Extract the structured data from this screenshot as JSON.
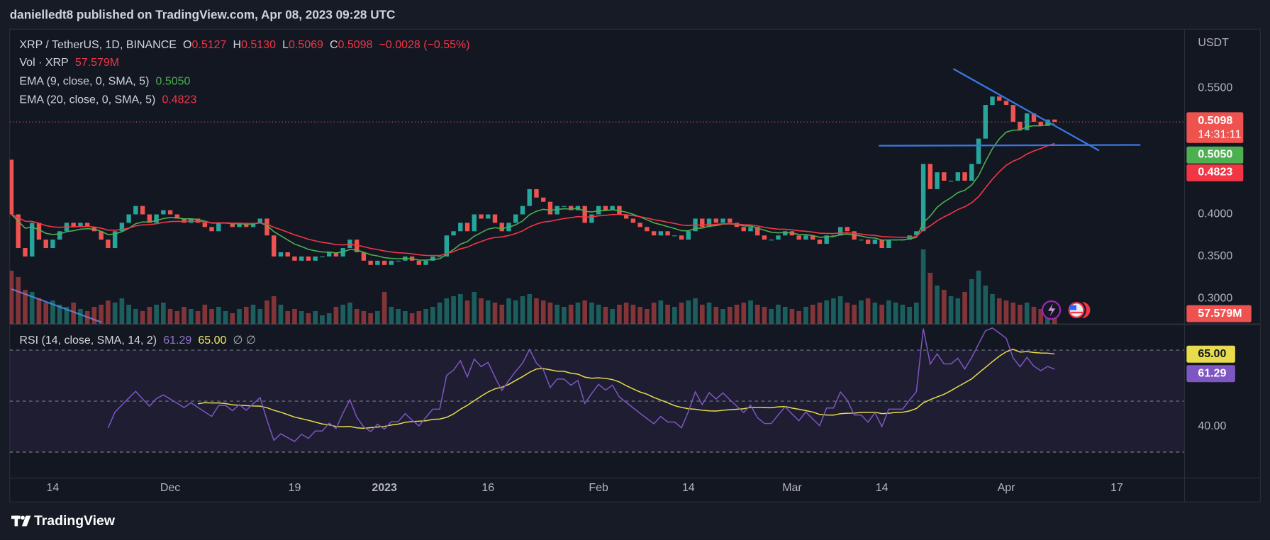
{
  "chart_data": {
    "type": "candlestick",
    "publisher": "danielledt8 published on TradingView.com, Apr 08, 2023 09:28 UTC",
    "symbol": "XRP / TetherUS, 1D, BINANCE",
    "ohlc": [
      {
        "key": "O",
        "value": "0.5127"
      },
      {
        "key": "H",
        "value": "0.5130"
      },
      {
        "key": "L",
        "value": "0.5069"
      },
      {
        "key": "C",
        "value": "0.5098"
      }
    ],
    "change": "−0.0028 (−0.55%)",
    "currency": "USDT",
    "categories": [
      null,
      null,
      null,
      null,
      null,
      null,
      "14",
      null,
      null,
      null,
      null,
      null,
      null,
      null,
      null,
      null,
      null,
      null,
      null,
      null,
      null,
      null,
      null,
      "Dec",
      null,
      null,
      null,
      null,
      null,
      null,
      null,
      null,
      null,
      null,
      null,
      null,
      null,
      null,
      null,
      null,
      null,
      "19",
      null,
      null,
      null,
      null,
      null,
      null,
      null,
      null,
      null,
      null,
      null,
      null,
      "2023",
      null,
      null,
      null,
      null,
      null,
      null,
      null,
      null,
      null,
      null,
      null,
      null,
      null,
      null,
      "16",
      null,
      null,
      null,
      null,
      null,
      null,
      null,
      null,
      null,
      null,
      null,
      null,
      null,
      null,
      null,
      "Feb",
      null,
      null,
      null,
      null,
      null,
      null,
      null,
      null,
      null,
      null,
      null,
      null,
      "14",
      null,
      null,
      null,
      null,
      null,
      null,
      null,
      null,
      null,
      null,
      null,
      null,
      null,
      null,
      "Mar",
      null,
      null,
      null,
      null,
      null,
      null,
      null,
      null,
      null,
      null,
      null,
      null,
      "14",
      null,
      null,
      null,
      null,
      null,
      null,
      null,
      null,
      null,
      null,
      null,
      null,
      null,
      null,
      null,
      null,
      null,
      "Apr",
      null,
      null,
      null,
      null,
      null,
      null,
      null,
      null,
      null,
      null,
      null,
      null,
      null,
      null,
      null,
      "17"
    ],
    "open": [
      0.465,
      0.4,
      0.36,
      0.35,
      0.39,
      0.37,
      0.36,
      0.37,
      0.38,
      0.39,
      0.385,
      0.39,
      0.385,
      0.38,
      0.37,
      0.36,
      0.38,
      0.39,
      0.4,
      0.41,
      0.4,
      0.39,
      0.4,
      0.405,
      0.4,
      0.395,
      0.39,
      0.395,
      0.39,
      0.385,
      0.38,
      0.39,
      0.39,
      0.385,
      0.39,
      0.385,
      0.39,
      0.395,
      0.375,
      0.35,
      0.355,
      0.35,
      0.345,
      0.35,
      0.345,
      0.35,
      0.35,
      0.355,
      0.35,
      0.36,
      0.37,
      0.355,
      0.345,
      0.34,
      0.345,
      0.34,
      0.345,
      0.345,
      0.35,
      0.345,
      0.34,
      0.345,
      0.35,
      0.35,
      0.375,
      0.38,
      0.39,
      0.38,
      0.4,
      0.395,
      0.4,
      0.39,
      0.38,
      0.39,
      0.4,
      0.41,
      0.43,
      0.42,
      0.415,
      0.4,
      0.41,
      0.41,
      0.405,
      0.41,
      0.39,
      0.4,
      0.41,
      0.405,
      0.41,
      0.4,
      0.395,
      0.39,
      0.385,
      0.38,
      0.375,
      0.38,
      0.375,
      0.375,
      0.37,
      0.38,
      0.395,
      0.385,
      0.395,
      0.39,
      0.395,
      0.39,
      0.385,
      0.38,
      0.385,
      0.375,
      0.37,
      0.37,
      0.375,
      0.38,
      0.375,
      0.37,
      0.375,
      0.37,
      0.365,
      0.375,
      0.375,
      0.385,
      0.38,
      0.37,
      0.37,
      0.365,
      0.37,
      0.36,
      0.37,
      0.37,
      0.37,
      0.375,
      0.38,
      0.46,
      0.43,
      0.45,
      0.44,
      0.44,
      0.45,
      0.44,
      0.46,
      0.49,
      0.53,
      0.54,
      0.535,
      0.53,
      0.51,
      0.5,
      0.52,
      0.51,
      0.505,
      0.5127,
      null,
      null,
      null,
      null,
      null,
      null,
      null,
      null,
      null
    ],
    "close": [
      0.4,
      0.36,
      0.35,
      0.39,
      0.37,
      0.36,
      0.37,
      0.38,
      0.39,
      0.385,
      0.39,
      0.385,
      0.38,
      0.37,
      0.36,
      0.38,
      0.39,
      0.4,
      0.41,
      0.4,
      0.39,
      0.4,
      0.405,
      0.4,
      0.395,
      0.39,
      0.395,
      0.39,
      0.385,
      0.38,
      0.39,
      0.39,
      0.385,
      0.39,
      0.385,
      0.39,
      0.395,
      0.375,
      0.35,
      0.355,
      0.35,
      0.345,
      0.35,
      0.345,
      0.35,
      0.35,
      0.355,
      0.35,
      0.36,
      0.37,
      0.355,
      0.345,
      0.34,
      0.345,
      0.34,
      0.345,
      0.345,
      0.35,
      0.345,
      0.34,
      0.345,
      0.35,
      0.35,
      0.375,
      0.38,
      0.39,
      0.38,
      0.4,
      0.395,
      0.4,
      0.39,
      0.38,
      0.39,
      0.4,
      0.41,
      0.43,
      0.42,
      0.415,
      0.4,
      0.41,
      0.41,
      0.405,
      0.41,
      0.39,
      0.4,
      0.41,
      0.405,
      0.41,
      0.4,
      0.395,
      0.39,
      0.385,
      0.38,
      0.375,
      0.38,
      0.375,
      0.375,
      0.37,
      0.38,
      0.395,
      0.385,
      0.395,
      0.39,
      0.395,
      0.39,
      0.385,
      0.38,
      0.385,
      0.375,
      0.37,
      0.37,
      0.375,
      0.38,
      0.375,
      0.37,
      0.375,
      0.37,
      0.365,
      0.375,
      0.375,
      0.385,
      0.38,
      0.37,
      0.37,
      0.365,
      0.37,
      0.36,
      0.37,
      0.37,
      0.37,
      0.375,
      0.38,
      0.46,
      0.43,
      0.45,
      0.44,
      0.44,
      0.45,
      0.44,
      0.46,
      0.49,
      0.53,
      0.54,
      0.535,
      0.53,
      0.51,
      0.5,
      0.52,
      0.51,
      0.505,
      0.5127,
      0.5098,
      null,
      null,
      null,
      null,
      null,
      null,
      null,
      null,
      null
    ],
    "up_color": "#26a69a",
    "down_color": "#ef5350",
    "ylim": [
      0.27,
      0.62
    ],
    "yticks": [
      {
        "value": 0.55,
        "label": "0.5500"
      },
      {
        "value": 0.4,
        "label": "0.4000"
      },
      {
        "value": 0.35,
        "label": "0.3500"
      },
      {
        "value": 0.3,
        "label": "0.3000"
      }
    ],
    "volume": {
      "name": "Vol · XRP",
      "value_label": "57.579M",
      "values": [
        250,
        220,
        160,
        150,
        120,
        100,
        110,
        90,
        80,
        100,
        70,
        60,
        80,
        90,
        110,
        100,
        120,
        90,
        70,
        60,
        80,
        90,
        100,
        70,
        60,
        80,
        70,
        60,
        90,
        70,
        80,
        60,
        50,
        70,
        80,
        90,
        70,
        110,
        130,
        90,
        60,
        70,
        60,
        50,
        60,
        40,
        50,
        80,
        90,
        100,
        70,
        60,
        50,
        60,
        150,
        80,
        70,
        60,
        50,
        60,
        70,
        80,
        100,
        120,
        130,
        140,
        110,
        150,
        120,
        110,
        100,
        90,
        120,
        110,
        130,
        140,
        120,
        110,
        100,
        90,
        80,
        90,
        100,
        110,
        100,
        90,
        80,
        70,
        90,
        100,
        90,
        80,
        70,
        100,
        110,
        90,
        80,
        100,
        110,
        120,
        90,
        100,
        80,
        70,
        80,
        90,
        100,
        110,
        90,
        80,
        70,
        90,
        80,
        70,
        60,
        80,
        90,
        100,
        110,
        120,
        130,
        100,
        90,
        110,
        120,
        100,
        90,
        110,
        100,
        90,
        80,
        100,
        350,
        240,
        180,
        160,
        130,
        120,
        150,
        210,
        250,
        180,
        140,
        120,
        110,
        100,
        90,
        100,
        80,
        70,
        90,
        57.579,
        null,
        null,
        null,
        null,
        null,
        null,
        null,
        null,
        null
      ]
    },
    "ema": [
      {
        "name": "EMA (9, close, 0, SMA, 5)",
        "period": 9,
        "color": "#4caf50",
        "value_label": "0.5050"
      },
      {
        "name": "EMA (20, close, 0, SMA, 5)",
        "period": 20,
        "color": "#f23645",
        "value_label": "0.4823"
      }
    ],
    "last_price": {
      "label": "0.5098",
      "countdown": "14:31:11"
    },
    "rsi": {
      "name": "RSI (14, close, SMA, 14, 2)",
      "period": 14,
      "sma_period": 14,
      "color": "#7e57c2",
      "sma_color": "#e9dc4c",
      "value_label": "61.29",
      "sma_label": "65.00",
      "extra": "∅ ∅",
      "ylim": [
        20,
        80
      ],
      "yticks": [
        {
          "value": 40,
          "label": "40.00"
        }
      ],
      "bands": [
        30,
        50,
        70
      ]
    },
    "footer": "TradingView"
  }
}
